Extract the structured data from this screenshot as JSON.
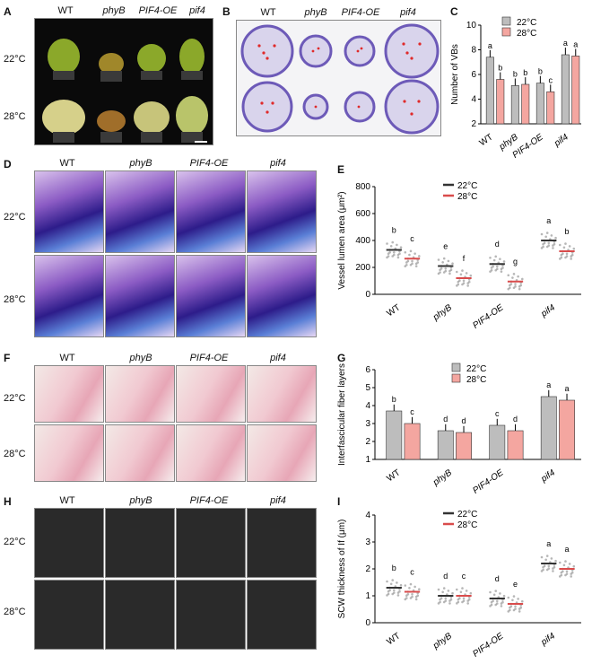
{
  "genotypes": [
    "WT",
    "phyB",
    "PIF4-OE",
    "pif4"
  ],
  "temps": [
    "22°C",
    "28°C"
  ],
  "panel_letters": [
    "A",
    "B",
    "C",
    "D",
    "E",
    "F",
    "G",
    "H",
    "I"
  ],
  "colors": {
    "c22": "#bdbdbd",
    "c28": "#f4a6a0",
    "dot22": "#333333",
    "dot28": "#d94c4c"
  },
  "chart_data": [
    {
      "id": "C",
      "type": "bar",
      "categories": [
        "WT",
        "phyB",
        "PIF4-OE",
        "pif4"
      ],
      "series": [
        {
          "name": "22°C",
          "values": [
            7.4,
            5.1,
            5.3,
            7.6
          ]
        },
        {
          "name": "28°C",
          "values": [
            5.6,
            5.2,
            4.6,
            7.5
          ]
        }
      ],
      "letters": [
        [
          "a",
          "b"
        ],
        [
          "b",
          "b"
        ],
        [
          "b",
          "c"
        ],
        [
          "a",
          "a"
        ]
      ],
      "ylabel": "Number of VBs",
      "ylim": [
        2,
        10
      ],
      "yticks": [
        2,
        4,
        6,
        8,
        10
      ]
    },
    {
      "id": "E",
      "type": "scatter",
      "categories": [
        "WT",
        "phyB",
        "PIF4-OE",
        "pif4"
      ],
      "series": [
        {
          "name": "22°C",
          "values": [
            330,
            210,
            225,
            400
          ]
        },
        {
          "name": "28°C",
          "values": [
            265,
            120,
            95,
            320
          ]
        }
      ],
      "letters": [
        [
          "b",
          "c"
        ],
        [
          "e",
          "f"
        ],
        [
          "d",
          "g"
        ],
        [
          "a",
          "b"
        ]
      ],
      "ylabel": "Vessel lumen area (μm²)",
      "ylim": [
        0,
        800
      ],
      "yticks": [
        0,
        200,
        400,
        600,
        800
      ]
    },
    {
      "id": "G",
      "type": "bar",
      "categories": [
        "WT",
        "phyB",
        "PIF4-OE",
        "pif4"
      ],
      "series": [
        {
          "name": "22°C",
          "values": [
            3.7,
            2.6,
            2.9,
            4.5
          ]
        },
        {
          "name": "28°C",
          "values": [
            3.0,
            2.5,
            2.6,
            4.3
          ]
        }
      ],
      "letters": [
        [
          "b",
          "c"
        ],
        [
          "d",
          "d"
        ],
        [
          "c",
          "d"
        ],
        [
          "a",
          "a"
        ]
      ],
      "ylabel": "Interfascicular fiber layers",
      "ylim": [
        1,
        6
      ],
      "yticks": [
        1,
        2,
        3,
        4,
        5,
        6
      ]
    },
    {
      "id": "I",
      "type": "scatter",
      "categories": [
        "WT",
        "phyB",
        "PIF4-OE",
        "pif4"
      ],
      "series": [
        {
          "name": "22°C",
          "values": [
            1.3,
            1.0,
            0.9,
            2.2
          ]
        },
        {
          "name": "28°C",
          "values": [
            1.15,
            1.0,
            0.7,
            2.0
          ]
        }
      ],
      "letters": [
        [
          "b",
          "c"
        ],
        [
          "d",
          "c"
        ],
        [
          "d",
          "e"
        ],
        [
          "a",
          "a"
        ]
      ],
      "ylabel": "SCW thickness of If (μm)",
      "ylim": [
        0,
        4
      ],
      "yticks": [
        0,
        1,
        2,
        3,
        4
      ]
    }
  ]
}
